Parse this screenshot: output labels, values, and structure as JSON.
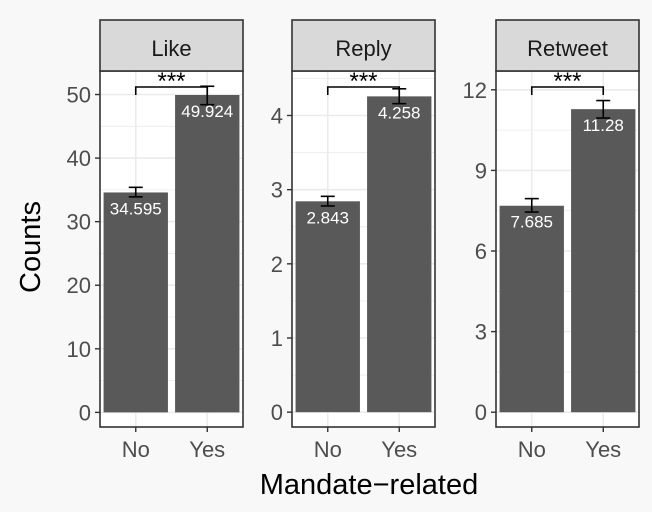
{
  "chart_data": {
    "type": "bar",
    "xlabel": "Mandate−related",
    "ylabel": "Counts",
    "colors": {
      "bar": "#595959",
      "background": "#f8f8f8",
      "panel": "#ffffff",
      "strip": "#d9d9d9",
      "grid": "#ebebeb",
      "frame": "#333333",
      "bar_label": "#ffffff"
    },
    "grid": true,
    "panels": [
      {
        "strip": "Like",
        "categories": [
          "No",
          "Yes"
        ],
        "values": [
          34.595,
          49.924
        ],
        "labels": [
          "34.595",
          "49.924"
        ],
        "error_low": [
          33.9,
          48.4
        ],
        "error_high": [
          35.4,
          51.3
        ],
        "ylim": [
          -2.3,
          53.7
        ],
        "yticks": [
          0,
          10,
          20,
          30,
          40,
          50
        ],
        "significance": "***"
      },
      {
        "strip": "Reply",
        "categories": [
          "No",
          "Yes"
        ],
        "values": [
          2.843,
          4.258
        ],
        "labels": [
          "2.843",
          "4.258"
        ],
        "error_low": [
          2.78,
          4.16
        ],
        "error_high": [
          2.91,
          4.36
        ],
        "ylim": [
          -0.2,
          4.6
        ],
        "yticks": [
          0,
          1,
          2,
          3,
          4
        ],
        "significance": "***"
      },
      {
        "strip": "Retweet",
        "categories": [
          "No",
          "Yes"
        ],
        "values": [
          7.685,
          11.28
        ],
        "labels": [
          "7.685",
          "11.28"
        ],
        "error_low": [
          7.45,
          10.95
        ],
        "error_high": [
          7.95,
          11.6
        ],
        "ylim": [
          -0.55,
          12.7
        ],
        "yticks": [
          0,
          3,
          6,
          9,
          12
        ],
        "significance": "***"
      }
    ]
  }
}
